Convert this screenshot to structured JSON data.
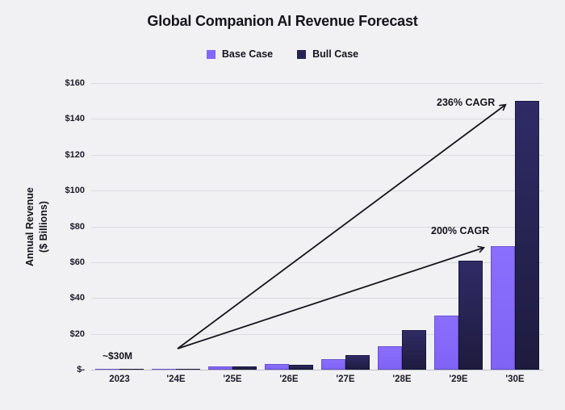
{
  "page": {
    "background": "#f1f1f4"
  },
  "chart_data": {
    "type": "bar",
    "title": "Global Companion AI Revenue Forecast",
    "ylabel_line1": "Annual Revenue",
    "ylabel_line2": "($ Billions)",
    "xlabel": "",
    "categories": [
      "2023",
      "'24E",
      "'25E",
      "'26E",
      "'27E",
      "'28E",
      "'29E",
      "'30E"
    ],
    "series": [
      {
        "name": "Base Case",
        "color": "#8468fb",
        "values": [
          0.03,
          0.5,
          2,
          3,
          6,
          13,
          30,
          69
        ]
      },
      {
        "name": "Bull Case",
        "color": "#262254",
        "values": [
          0.03,
          0.5,
          1.8,
          2.5,
          8,
          22,
          61,
          150
        ]
      }
    ],
    "ylim": [
      0,
      160
    ],
    "yticks": [
      {
        "value": 0,
        "label": "$-"
      },
      {
        "value": 20,
        "label": "$20"
      },
      {
        "value": 40,
        "label": "$40"
      },
      {
        "value": 60,
        "label": "$60"
      },
      {
        "value": 80,
        "label": "$80"
      },
      {
        "value": 100,
        "label": "$100"
      },
      {
        "value": 120,
        "label": "$120"
      },
      {
        "value": 140,
        "label": "$140"
      },
      {
        "value": 160,
        "label": "$160"
      }
    ],
    "grid": "horizontal",
    "legend_position": "top-center",
    "annotations": [
      {
        "type": "label",
        "text": "~$30M"
      },
      {
        "type": "arrow-label",
        "text": "236% CAGR"
      },
      {
        "type": "arrow-label",
        "text": "200% CAGR"
      }
    ],
    "colors": {
      "background": "#f1f1f4",
      "gridline": "#dadadf",
      "baseline": "#bfbfc6",
      "text": "#15141c",
      "arrow": "#16151d"
    }
  }
}
